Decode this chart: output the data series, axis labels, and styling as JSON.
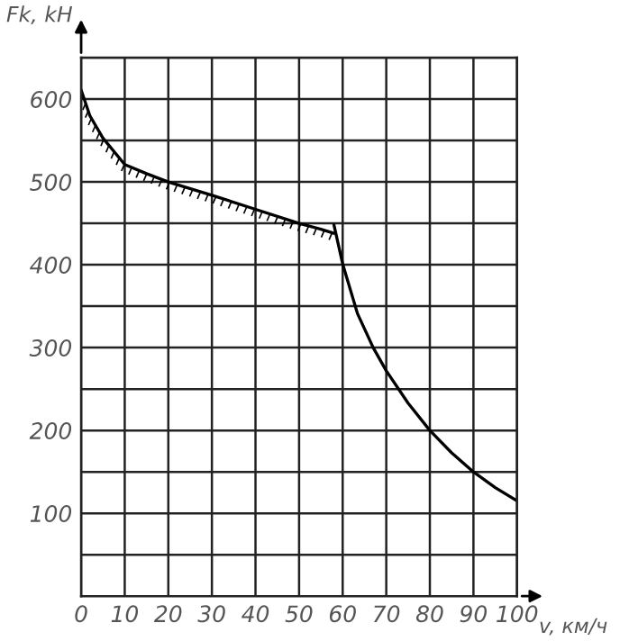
{
  "chart_data": {
    "type": "line",
    "ylabel": "Fk, kH",
    "xlabel": "v, км/ч",
    "series": [
      {
        "color": "#000000",
        "x": [
          0,
          2,
          5,
          10,
          15,
          20,
          30,
          40,
          50,
          55,
          58
        ],
        "values": [
          611,
          580,
          553,
          521,
          510,
          500,
          484,
          467,
          450,
          443,
          438
        ]
      },
      {
        "color": "#000000",
        "x": [
          58,
          60,
          63.4,
          67,
          70,
          75,
          80,
          85,
          90,
          95,
          100
        ],
        "values": [
          448,
          401,
          341,
          300,
          272,
          233,
          200,
          173,
          150,
          131,
          115
        ]
      }
    ],
    "xlim": [
      0,
      100
    ],
    "ylim": [
      0,
      650
    ],
    "xticks": [
      0,
      10,
      20,
      30,
      40,
      50,
      60,
      70,
      80,
      90,
      100
    ],
    "yticks": [
      {
        "value": 0,
        "label": null
      },
      {
        "value": 50,
        "label": null
      },
      100,
      {
        "value": 150,
        "label": null
      },
      200,
      {
        "value": 250,
        "label": null
      },
      300,
      {
        "value": 350,
        "label": null
      },
      400,
      {
        "value": 450,
        "label": null
      },
      500,
      {
        "value": 550,
        "label": null
      },
      600,
      {
        "value": 650,
        "label": null
      }
    ],
    "grid": true,
    "marker": "none",
    "line_style": "solid"
  }
}
